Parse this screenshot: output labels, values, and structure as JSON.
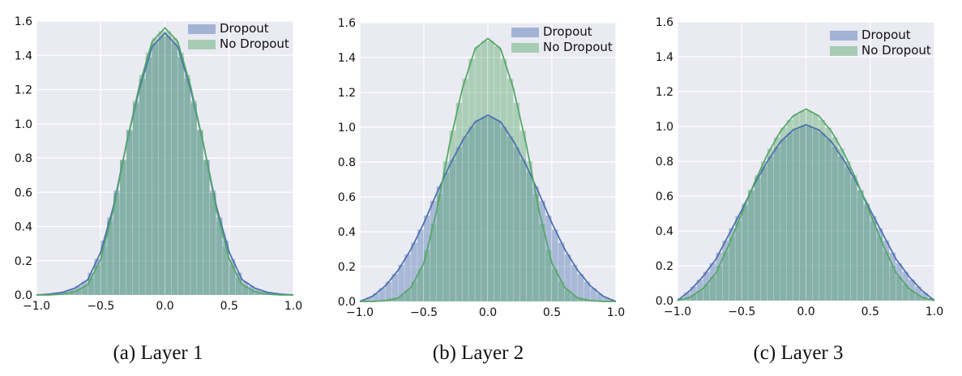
{
  "colors": {
    "dropout": "#4c72b0",
    "no_dropout": "#55a868",
    "plot_bg": "#eaeaf2",
    "grid": "#ffffff"
  },
  "chart_data": [
    {
      "type": "area",
      "caption": "(a) Layer 1",
      "xlim": [
        -1.0,
        1.0
      ],
      "ylim": [
        0.0,
        1.6
      ],
      "xticks": [
        "−1.0",
        "−0.5",
        "0.0",
        "0.5",
        "1.0"
      ],
      "yticks": [
        "0.0",
        "0.2",
        "0.4",
        "0.6",
        "0.8",
        "1.0",
        "1.2",
        "1.4",
        "1.6"
      ],
      "grid": true,
      "legend_position": "top-right",
      "series": [
        {
          "name": "Dropout",
          "color": "#4c72b0",
          "peak": 1.53,
          "x": [
            -1.0,
            -0.9,
            -0.8,
            -0.7,
            -0.6,
            -0.5,
            -0.4,
            -0.3,
            -0.2,
            -0.1,
            0.0,
            0.1,
            0.2,
            0.3,
            0.4,
            0.5,
            0.6,
            0.7,
            0.8,
            0.9,
            1.0
          ],
          "y": [
            0.0,
            0.005,
            0.015,
            0.04,
            0.09,
            0.25,
            0.52,
            0.88,
            1.2,
            1.45,
            1.53,
            1.45,
            1.2,
            0.88,
            0.52,
            0.25,
            0.09,
            0.04,
            0.015,
            0.005,
            0.0
          ]
        },
        {
          "name": "No Dropout",
          "color": "#55a868",
          "peak": 1.56,
          "x": [
            -1.0,
            -0.9,
            -0.8,
            -0.7,
            -0.6,
            -0.5,
            -0.4,
            -0.3,
            -0.2,
            -0.1,
            0.0,
            0.1,
            0.2,
            0.3,
            0.4,
            0.5,
            0.6,
            0.7,
            0.8,
            0.9,
            1.0
          ],
          "y": [
            0.0,
            0.0,
            0.005,
            0.02,
            0.06,
            0.21,
            0.5,
            0.88,
            1.22,
            1.48,
            1.56,
            1.48,
            1.22,
            0.88,
            0.5,
            0.21,
            0.06,
            0.02,
            0.005,
            0.0,
            0.0
          ]
        }
      ]
    },
    {
      "type": "area",
      "caption": "(b) Layer 2",
      "xlim": [
        -1.0,
        1.0
      ],
      "ylim": [
        0.0,
        1.6
      ],
      "xticks": [
        "−1.0",
        "−0.5",
        "0.0",
        "0.5",
        "1.0"
      ],
      "yticks": [
        "0.0",
        "0.2",
        "0.4",
        "0.6",
        "0.8",
        "1.0",
        "1.2",
        "1.4",
        "1.6"
      ],
      "grid": true,
      "legend_position": "top-right",
      "series": [
        {
          "name": "Dropout",
          "color": "#4c72b0",
          "peak": 1.07,
          "x": [
            -1.0,
            -0.9,
            -0.8,
            -0.7,
            -0.6,
            -0.5,
            -0.4,
            -0.3,
            -0.2,
            -0.1,
            0.0,
            0.1,
            0.2,
            0.3,
            0.4,
            0.5,
            0.6,
            0.7,
            0.8,
            0.9,
            1.0
          ],
          "y": [
            0.0,
            0.03,
            0.09,
            0.18,
            0.3,
            0.45,
            0.62,
            0.78,
            0.92,
            1.03,
            1.07,
            1.03,
            0.92,
            0.78,
            0.62,
            0.45,
            0.3,
            0.18,
            0.09,
            0.03,
            0.0
          ]
        },
        {
          "name": "No Dropout",
          "color": "#55a868",
          "peak": 1.51,
          "x": [
            -1.0,
            -0.9,
            -0.8,
            -0.7,
            -0.6,
            -0.5,
            -0.4,
            -0.3,
            -0.2,
            -0.1,
            0.0,
            0.1,
            0.2,
            0.3,
            0.4,
            0.5,
            0.6,
            0.7,
            0.8,
            0.9,
            1.0
          ],
          "y": [
            0.0,
            0.0,
            0.005,
            0.02,
            0.08,
            0.22,
            0.52,
            0.9,
            1.22,
            1.45,
            1.51,
            1.45,
            1.22,
            0.9,
            0.52,
            0.22,
            0.08,
            0.02,
            0.005,
            0.0,
            0.0
          ]
        }
      ]
    },
    {
      "type": "area",
      "caption": "(c) Layer 3",
      "xlim": [
        -1.0,
        1.0
      ],
      "ylim": [
        0.0,
        1.6
      ],
      "xticks": [
        "−1.0",
        "−0.5",
        "0.0",
        "0.5",
        "1.0"
      ],
      "yticks": [
        "0.0",
        "0.2",
        "0.4",
        "0.6",
        "0.8",
        "1.0",
        "1.2",
        "1.4",
        "1.6"
      ],
      "grid": true,
      "legend_position": "top-right",
      "series": [
        {
          "name": "Dropout",
          "color": "#4c72b0",
          "peak": 1.01,
          "x": [
            -1.0,
            -0.9,
            -0.8,
            -0.7,
            -0.6,
            -0.5,
            -0.4,
            -0.3,
            -0.2,
            -0.1,
            0.0,
            0.1,
            0.2,
            0.3,
            0.4,
            0.5,
            0.6,
            0.7,
            0.8,
            0.9,
            1.0
          ],
          "y": [
            0.0,
            0.06,
            0.14,
            0.24,
            0.38,
            0.52,
            0.67,
            0.8,
            0.91,
            0.98,
            1.01,
            0.98,
            0.91,
            0.8,
            0.67,
            0.52,
            0.38,
            0.24,
            0.14,
            0.06,
            0.0
          ]
        },
        {
          "name": "No Dropout",
          "color": "#55a868",
          "peak": 1.1,
          "x": [
            -1.0,
            -0.9,
            -0.8,
            -0.7,
            -0.6,
            -0.5,
            -0.4,
            -0.3,
            -0.2,
            -0.1,
            0.0,
            0.1,
            0.2,
            0.3,
            0.4,
            0.5,
            0.6,
            0.7,
            0.8,
            0.9,
            1.0
          ],
          "y": [
            0.0,
            0.02,
            0.07,
            0.16,
            0.32,
            0.5,
            0.68,
            0.84,
            0.97,
            1.06,
            1.1,
            1.06,
            0.97,
            0.84,
            0.68,
            0.5,
            0.32,
            0.16,
            0.07,
            0.02,
            0.0
          ]
        }
      ]
    }
  ]
}
